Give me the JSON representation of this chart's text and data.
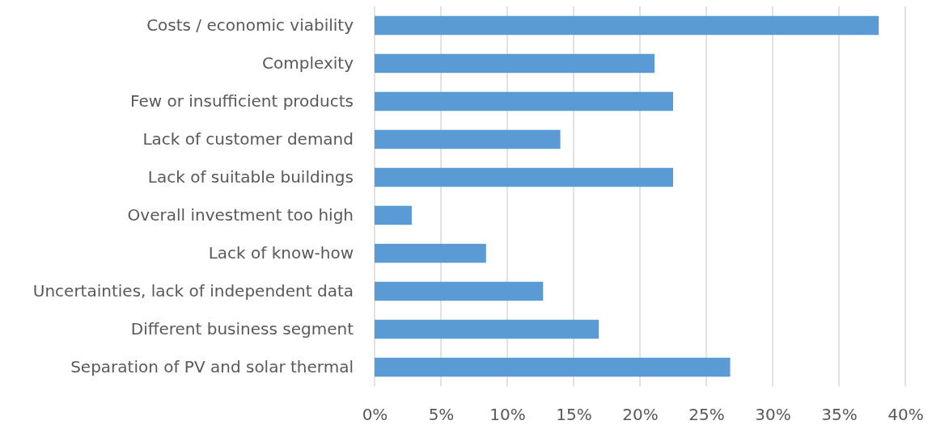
{
  "chart_data": {
    "type": "bar",
    "orientation": "horizontal",
    "categories": [
      "Costs / economic viability",
      "Complexity",
      "Few or insufficient products",
      "Lack of customer demand",
      "Lack of suitable buildings",
      "Overall investment too high",
      "Lack of know-how",
      "Uncertainties, lack of independent data",
      "Different business segment",
      "Separation of PV and solar thermal"
    ],
    "values": [
      38.0,
      21.1,
      22.5,
      14.0,
      22.5,
      2.8,
      8.4,
      12.7,
      16.9,
      26.8
    ],
    "color": "#5b9bd5",
    "xlim": [
      0,
      40
    ],
    "xticks": [
      {
        "value": 0,
        "label": "0%"
      },
      {
        "value": 5,
        "label": "5%"
      },
      {
        "value": 10,
        "label": "10%"
      },
      {
        "value": 15,
        "label": "15%"
      },
      {
        "value": 20,
        "label": "20%"
      },
      {
        "value": 25,
        "label": "25%"
      },
      {
        "value": 30,
        "label": "30%"
      },
      {
        "value": 35,
        "label": "35%"
      },
      {
        "value": 40,
        "label": "40%"
      }
    ],
    "grid": "x"
  }
}
